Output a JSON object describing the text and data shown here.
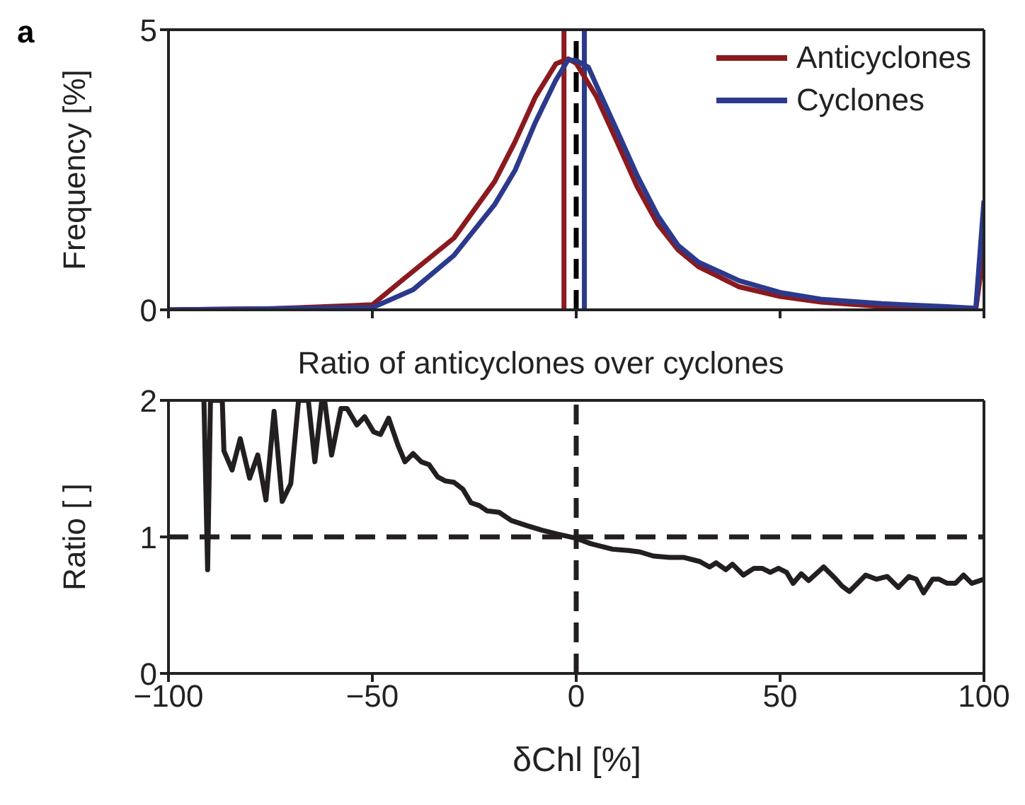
{
  "chart_data": [
    {
      "type": "line",
      "ylabel": "Frequency [%]",
      "annotations": [
        "a"
      ],
      "xlim": [
        -100,
        100
      ],
      "xticks": [
        {
          "value": -100,
          "label": null
        },
        {
          "value": -50,
          "label": null
        },
        {
          "value": 0,
          "label": null
        },
        {
          "value": 50,
          "label": null
        },
        {
          "value": 100,
          "label": null
        }
      ],
      "ylim": [
        0,
        5
      ],
      "yticks": [
        0,
        5
      ],
      "tick_labels": "y",
      "grid": false,
      "legend": "top right",
      "marker": "none",
      "line_style": "solid",
      "ref_lines": [
        {
          "axis": "x",
          "value": 0,
          "color": "#000000",
          "line_style": "dashed"
        },
        {
          "axis": "x",
          "value": -3,
          "color": "#8b1a1f",
          "line_style": "solid"
        },
        {
          "axis": "x",
          "value": 2,
          "color": "#2b3a8c",
          "line_style": "solid"
        }
      ],
      "series": [
        {
          "name": "Anticyclones",
          "color": "#8b1a1f",
          "x": [
            -100,
            -75,
            -50,
            -42,
            -30,
            -20,
            -15,
            -10,
            -5,
            -2,
            0,
            5,
            10,
            15,
            20,
            25,
            30,
            40,
            50,
            60,
            75,
            90,
            98,
            100
          ],
          "values": [
            0,
            0.02,
            0.09,
            0.57,
            1.28,
            2.29,
            3.0,
            3.8,
            4.39,
            4.48,
            4.4,
            3.8,
            3.0,
            2.19,
            1.53,
            1.07,
            0.77,
            0.41,
            0.24,
            0.14,
            0.06,
            0.03,
            0.01,
            1.07
          ]
        },
        {
          "name": "Cyclones",
          "color": "#2b3a8c",
          "x": [
            -100,
            -50,
            -40,
            -30,
            -20,
            -15,
            -10,
            -5,
            -2,
            0,
            3,
            5,
            10,
            15,
            20,
            25,
            30,
            40,
            50,
            60,
            75,
            90,
            98,
            100
          ],
          "values": [
            0,
            0.04,
            0.36,
            0.97,
            1.88,
            2.49,
            3.35,
            4.1,
            4.46,
            4.45,
            4.33,
            4.0,
            3.2,
            2.39,
            1.68,
            1.15,
            0.85,
            0.52,
            0.31,
            0.19,
            0.11,
            0.06,
            0.03,
            1.95
          ]
        }
      ]
    },
    {
      "type": "line",
      "title": "Ratio of anticyclones over cyclones",
      "xlabel": "δChl [%]",
      "ylabel": "Ratio [ ]",
      "xlim": [
        -100,
        100
      ],
      "xticks": [
        -100,
        -50,
        0,
        50,
        100
      ],
      "ylim": [
        0,
        2
      ],
      "yticks": [
        0,
        1,
        2
      ],
      "grid": false,
      "marker": "none",
      "line_style": "solid",
      "ref_lines": [
        {
          "axis": "x",
          "value": 0,
          "color": "#231f20",
          "line_style": "dashed"
        },
        {
          "axis": "y",
          "value": 1,
          "color": "#231f20",
          "line_style": "dashed"
        }
      ],
      "series": [
        {
          "color": "#231f20",
          "x": [
            -91.3,
            -90.4,
            -89.7,
            -86.8,
            -86.4,
            -84.4,
            -82.4,
            -80.1,
            -78.1,
            -76.1,
            -74.1,
            -72.1,
            -70,
            -68.1,
            -65.7,
            -64.1,
            -62.4,
            -61.7,
            -60,
            -57.7,
            -56.2,
            -53.8,
            -51.9,
            -49.7,
            -48,
            -46,
            -43.7,
            -42,
            -40,
            -38,
            -36.1,
            -34,
            -32.1,
            -30,
            -27.8,
            -25.8,
            -23.8,
            -21.8,
            -18.9,
            -15.9,
            -11.8,
            -8.5,
            -4.5,
            0,
            3.6,
            8.9,
            12.9,
            15.6,
            18.9,
            22.9,
            26.3,
            30.3,
            32.7,
            34.3,
            36.7,
            38.3,
            41,
            43.6,
            45.6,
            47.6,
            49.6,
            51.6,
            53.2,
            55.2,
            57,
            60.7,
            63.4,
            65.2,
            67,
            71,
            73.6,
            76.3,
            79,
            81.6,
            83.4,
            85.2,
            87.4,
            89,
            91,
            93,
            95,
            97,
            100
          ],
          "values": [
            2,
            0.76,
            2,
            2,
            1.63,
            1.49,
            1.72,
            1.43,
            1.6,
            1.27,
            1.92,
            1.26,
            1.39,
            2,
            2,
            1.55,
            2,
            2,
            1.6,
            1.94,
            1.94,
            1.82,
            1.88,
            1.77,
            1.75,
            1.87,
            1.67,
            1.55,
            1.61,
            1.55,
            1.53,
            1.44,
            1.41,
            1.4,
            1.35,
            1.25,
            1.23,
            1.19,
            1.18,
            1.12,
            1.08,
            1.05,
            1.02,
            0.99,
            0.95,
            0.91,
            0.9,
            0.89,
            0.86,
            0.85,
            0.85,
            0.82,
            0.78,
            0.81,
            0.76,
            0.8,
            0.72,
            0.77,
            0.77,
            0.74,
            0.77,
            0.74,
            0.66,
            0.73,
            0.68,
            0.78,
            0.7,
            0.64,
            0.6,
            0.72,
            0.69,
            0.71,
            0.63,
            0.71,
            0.69,
            0.59,
            0.69,
            0.69,
            0.66,
            0.66,
            0.72,
            0.66,
            0.69
          ]
        }
      ]
    }
  ]
}
